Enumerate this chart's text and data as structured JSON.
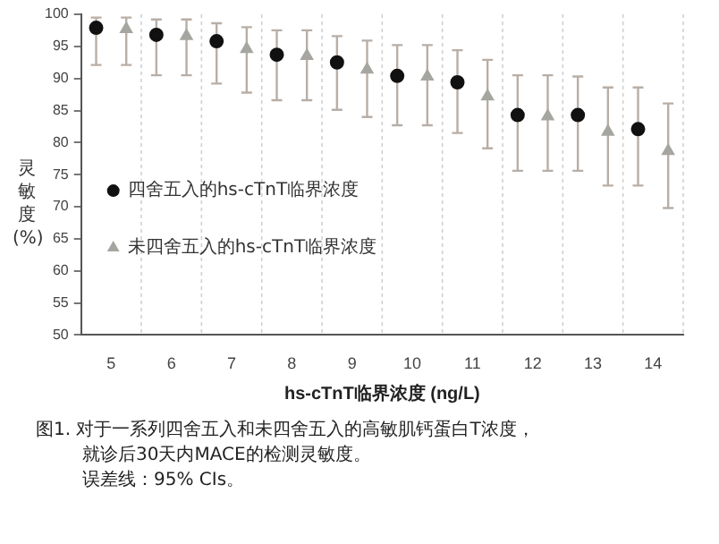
{
  "chart_data": {
    "type": "scatter",
    "ylabel": "灵敏度 (%)",
    "xlabel": "hs-cTnT临界浓度 (ng/L)",
    "categories": [
      "5",
      "6",
      "7",
      "8",
      "9",
      "10",
      "11",
      "12",
      "13",
      "14"
    ],
    "ylim": [
      50,
      100
    ],
    "yticks": [
      50,
      55,
      60,
      65,
      70,
      75,
      80,
      85,
      90,
      95,
      100
    ],
    "grid": "x",
    "legend": "left",
    "series": [
      {
        "name": "四舍五入的hs-cTnT临界浓度",
        "color": "#111111",
        "marker": "circle",
        "values": [
          97.9,
          96.8,
          95.8,
          93.7,
          92.5,
          90.4,
          89.4,
          84.3,
          84.3,
          82.1
        ],
        "errors": [
          [
            92.1,
            99.5
          ],
          [
            90.5,
            99.2
          ],
          [
            89.2,
            98.6
          ],
          [
            86.6,
            97.5
          ],
          [
            85.1,
            96.6
          ],
          [
            82.7,
            95.2
          ],
          [
            81.5,
            94.4
          ],
          [
            75.6,
            90.5
          ],
          [
            75.6,
            90.3
          ],
          [
            73.3,
            88.6
          ]
        ]
      },
      {
        "name": "未四舍五入的hs-cTnT临界浓度",
        "color": "#a6a6a0",
        "marker": "triangle",
        "values": [
          97.7,
          96.6,
          94.6,
          93.5,
          91.4,
          90.3,
          87.2,
          84.1,
          81.7,
          78.7
        ],
        "errors": [
          [
            92.1,
            99.5
          ],
          [
            90.5,
            99.2
          ],
          [
            87.8,
            98.0
          ],
          [
            86.6,
            97.5
          ],
          [
            84.0,
            95.9
          ],
          [
            82.7,
            95.2
          ],
          [
            79.1,
            92.9
          ],
          [
            75.6,
            90.5
          ],
          [
            73.3,
            88.6
          ],
          [
            69.8,
            86.1
          ]
        ]
      }
    ],
    "annotations": [
      "图1. 对于一系列四舍五入和未四舍五入的高敏肌钙蛋白T浓度，",
      "就诊后30天内MACE的检测灵敏度。",
      "误差线：95% CIs。"
    ]
  }
}
